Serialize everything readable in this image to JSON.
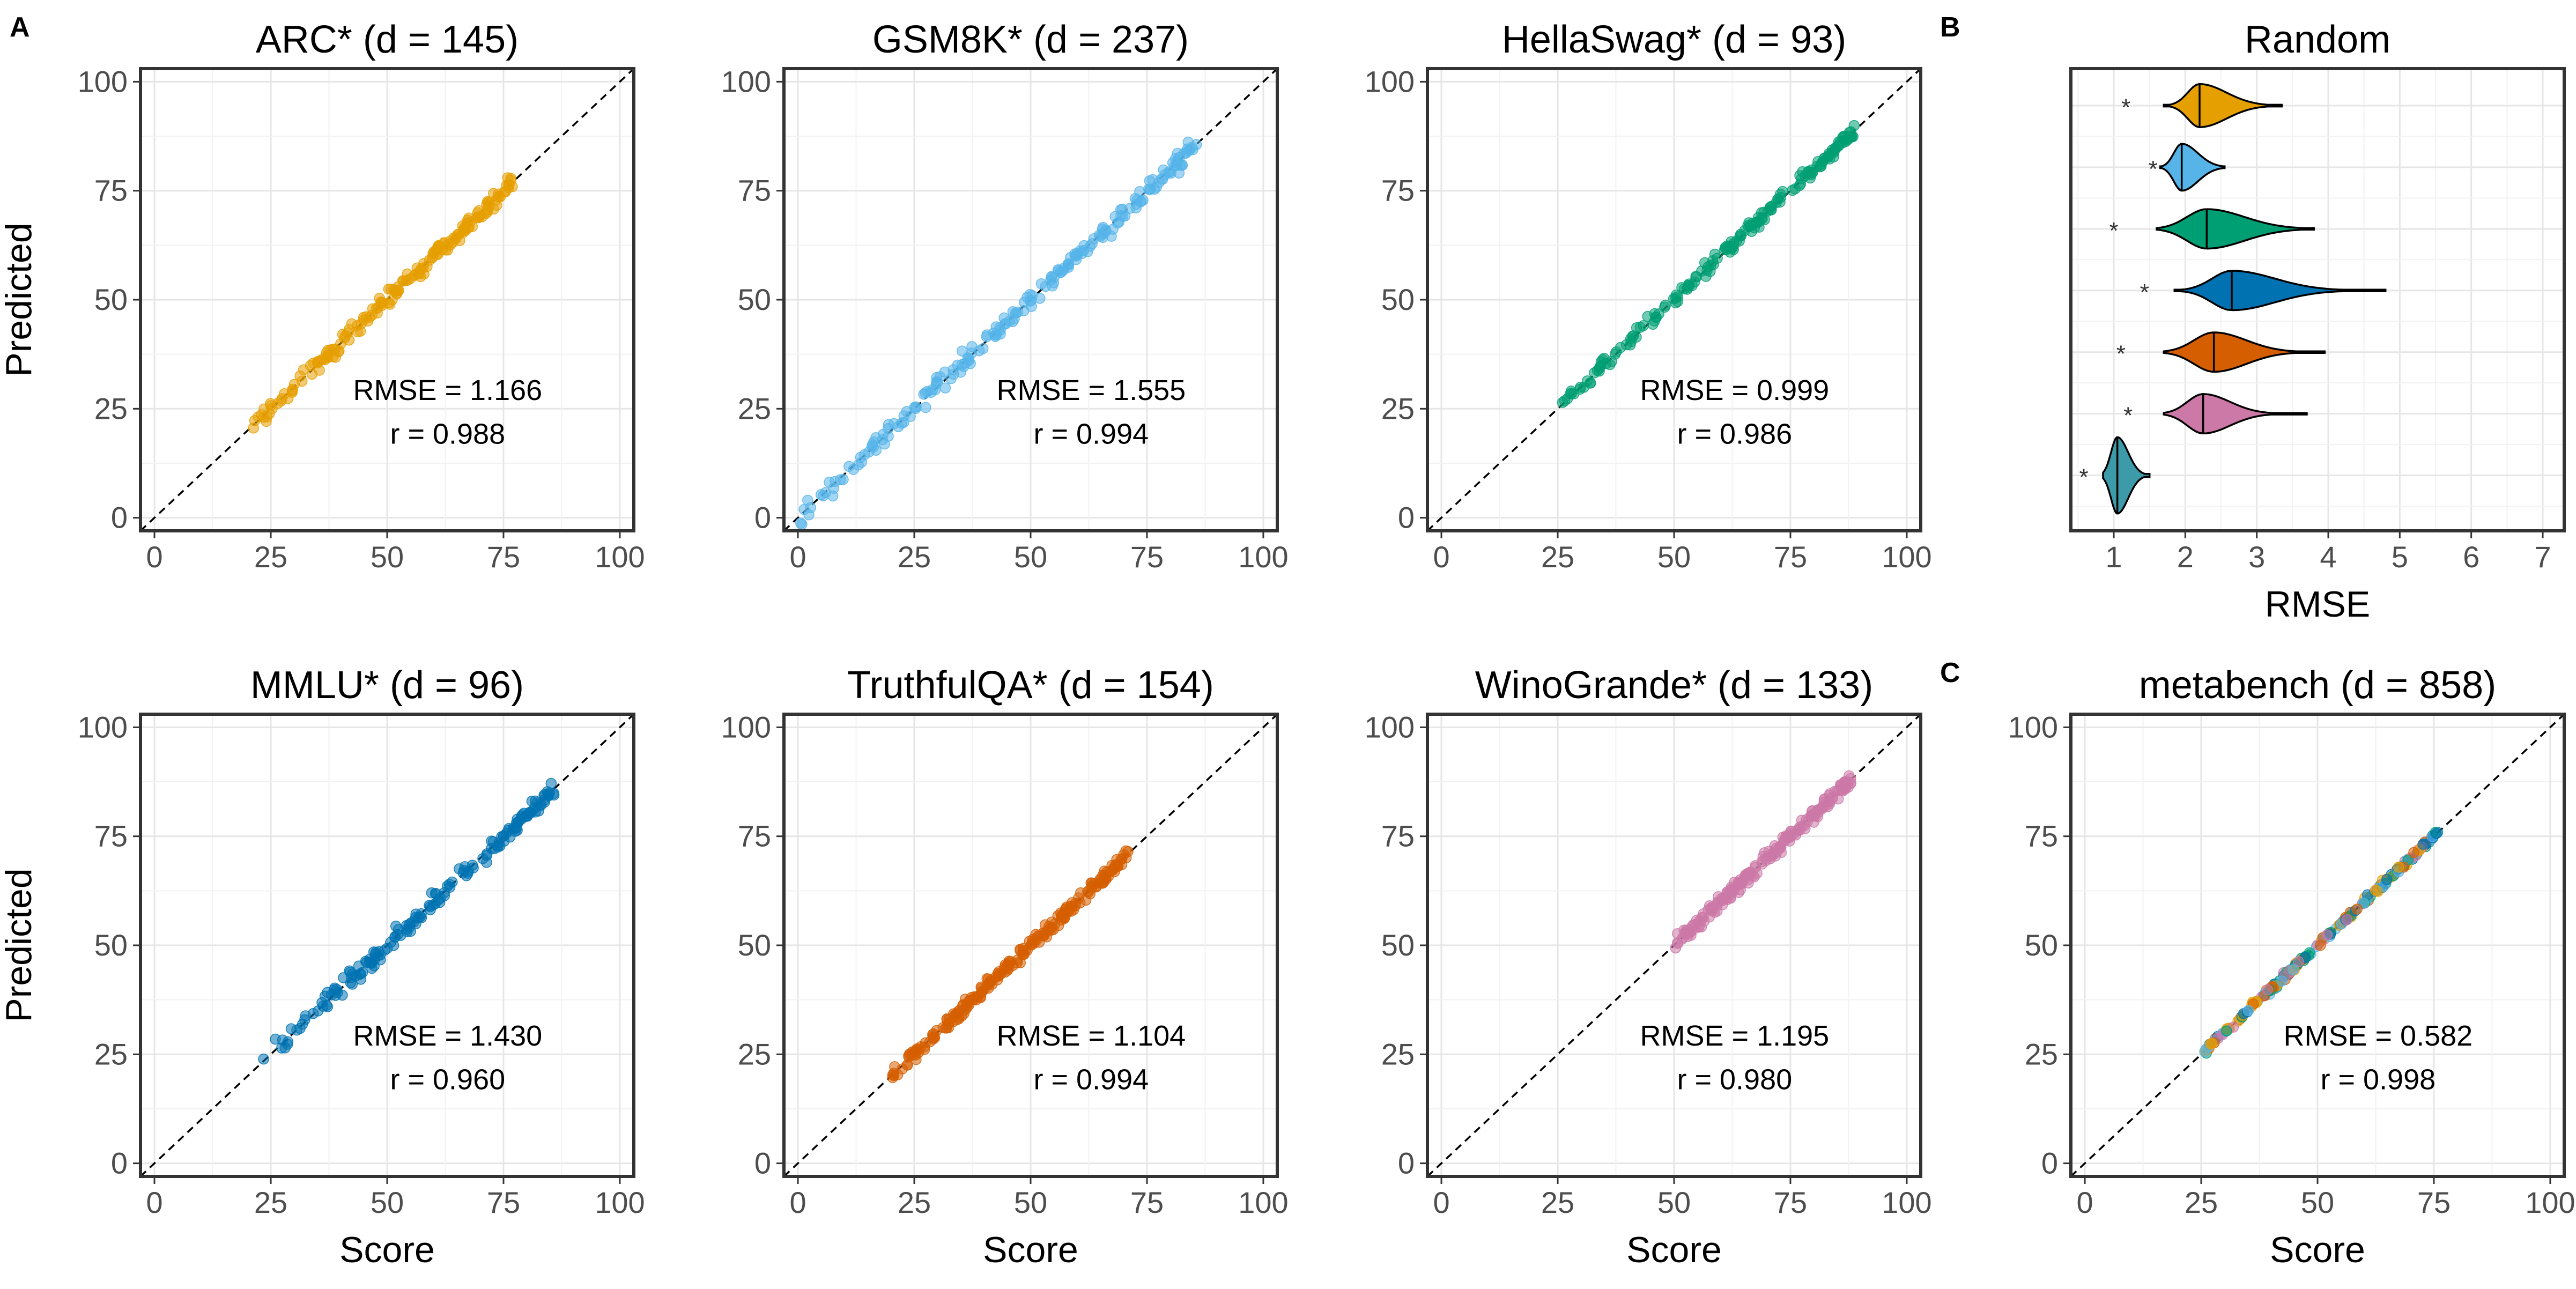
{
  "panel_tags": {
    "a": "A",
    "b": "B",
    "c": "C"
  },
  "axis_titles": {
    "x": "Score",
    "y": "Predicted",
    "violin_x": "RMSE"
  },
  "chart_data": [
    {
      "type": "scatter",
      "title": "ARC* (d = 145)",
      "xlabel": "Score",
      "ylabel": "Predicted",
      "xlim": [
        0,
        100
      ],
      "ylim": [
        0,
        100
      ],
      "ticks": [
        "0",
        "25",
        "50",
        "75",
        "100"
      ],
      "reference_line": "y = x (dashed)",
      "color": "#E69F00",
      "rmse_label": "RMSE = 1.166",
      "r_label": "r = 0.988",
      "range": [
        21,
        77
      ],
      "n_points": 180,
      "noise": 1.8
    },
    {
      "type": "scatter",
      "title": "GSM8K* (d = 237)",
      "xlabel": "Score",
      "ylabel": "Predicted",
      "xlim": [
        0,
        100
      ],
      "ylim": [
        0,
        100
      ],
      "ticks": [
        "0",
        "25",
        "50",
        "75",
        "100"
      ],
      "reference_line": "y = x (dashed)",
      "color": "#56B4E9",
      "rmse_label": "RMSE = 1.555",
      "r_label": "r = 0.994",
      "range": [
        0,
        86
      ],
      "n_points": 200,
      "noise": 2.2
    },
    {
      "type": "scatter",
      "title": "HellaSwag* (d = 93)",
      "xlabel": "Score",
      "ylabel": "Predicted",
      "xlim": [
        0,
        100
      ],
      "ylim": [
        0,
        100
      ],
      "ticks": [
        "0",
        "25",
        "50",
        "75",
        "100"
      ],
      "reference_line": "y = x (dashed)",
      "color": "#009E73",
      "rmse_label": "RMSE = 0.999",
      "r_label": "r = 0.986",
      "range": [
        26,
        89
      ],
      "n_points": 180,
      "noise": 1.5
    },
    {
      "type": "violin",
      "title": "Random",
      "xlabel": "RMSE",
      "xlim": [
        0.4,
        7.3
      ],
      "xticks": [
        1,
        2,
        3,
        4,
        5,
        6,
        7
      ],
      "star_label": "*",
      "violins": [
        {
          "color": "#E69F00",
          "min": 1.7,
          "q1": 2.05,
          "median": 2.2,
          "q3": 2.45,
          "max": 3.35,
          "width": 0.35,
          "star": 1.17
        },
        {
          "color": "#56B4E9",
          "min": 1.65,
          "q1": 1.85,
          "median": 1.95,
          "q3": 2.1,
          "max": 2.55,
          "width": 0.38,
          "star": 1.55
        },
        {
          "color": "#009E73",
          "min": 1.6,
          "q1": 2.05,
          "median": 2.3,
          "q3": 2.65,
          "max": 3.8,
          "width": 0.32,
          "star": 1.0
        },
        {
          "color": "#0072B2",
          "min": 1.85,
          "q1": 2.4,
          "median": 2.65,
          "q3": 3.05,
          "max": 4.8,
          "width": 0.32,
          "star": 1.43
        },
        {
          "color": "#D55E00",
          "min": 1.7,
          "q1": 2.15,
          "median": 2.4,
          "q3": 2.7,
          "max": 3.95,
          "width": 0.32,
          "star": 1.1
        },
        {
          "color": "#CC79A7",
          "min": 1.7,
          "q1": 2.05,
          "median": 2.25,
          "q3": 2.5,
          "max": 3.7,
          "width": 0.32,
          "star": 1.2
        },
        {
          "color": "#3D9AA8",
          "min": 0.85,
          "q1": 0.97,
          "median": 1.05,
          "q3": 1.15,
          "max": 1.5,
          "width": 0.4,
          "star": 0.58
        }
      ]
    },
    {
      "type": "scatter",
      "title": "MMLU* (d = 96)",
      "xlabel": "Score",
      "ylabel": "Predicted",
      "xlim": [
        0,
        100
      ],
      "ylim": [
        0,
        100
      ],
      "ticks": [
        "0",
        "25",
        "50",
        "75",
        "100"
      ],
      "reference_line": "y = x (dashed)",
      "color": "#0072B2",
      "rmse_label": "RMSE = 1.430",
      "r_label": "r = 0.960",
      "range": [
        23,
        86
      ],
      "n_points": 170,
      "noise": 2.0
    },
    {
      "type": "scatter",
      "title": "TruthfulQA* (d = 154)",
      "xlabel": "Score",
      "ylabel": "Predicted",
      "xlim": [
        0,
        100
      ],
      "ylim": [
        0,
        100
      ],
      "ticks": [
        "0",
        "25",
        "50",
        "75",
        "100"
      ],
      "reference_line": "y = x (dashed)",
      "color": "#D55E00",
      "rmse_label": "RMSE = 1.104",
      "r_label": "r = 0.994",
      "range": [
        20,
        71
      ],
      "n_points": 220,
      "noise": 1.5
    },
    {
      "type": "scatter",
      "title": "WinoGrande* (d = 133)",
      "xlabel": "Score",
      "ylabel": "Predicted",
      "xlim": [
        0,
        100
      ],
      "ylim": [
        0,
        100
      ],
      "ticks": [
        "0",
        "25",
        "50",
        "75",
        "100"
      ],
      "reference_line": "y = x (dashed)",
      "color": "#CC79A7",
      "rmse_label": "RMSE = 1.195",
      "r_label": "r = 0.980",
      "range": [
        50,
        88
      ],
      "n_points": 200,
      "noise": 1.7
    },
    {
      "type": "scatter",
      "title": "metabench (d = 858)",
      "xlabel": "Score",
      "ylabel": "Predicted",
      "xlim": [
        0,
        100
      ],
      "ylim": [
        0,
        100
      ],
      "ticks": [
        "0",
        "25",
        "50",
        "75",
        "100"
      ],
      "reference_line": "y = x (dashed)",
      "colors": [
        "#E69F00",
        "#56B4E9",
        "#009E73",
        "#0072B2",
        "#D55E00",
        "#CC79A7"
      ],
      "rmse_label": "RMSE = 0.582",
      "r_label": "r = 0.998",
      "range": [
        25,
        76
      ],
      "n_points": 200,
      "noise": 0.7
    }
  ]
}
